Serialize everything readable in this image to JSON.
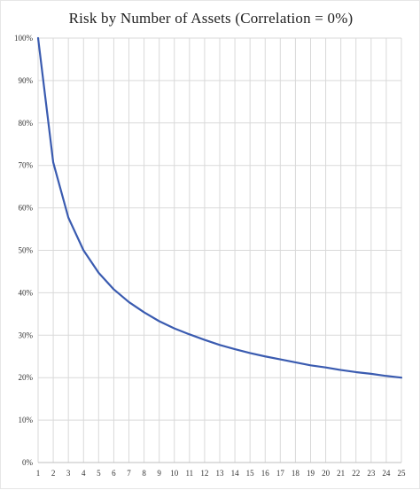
{
  "chart_data": {
    "type": "line",
    "title": "Risk by Number of Assets (Correlation = 0%)",
    "xlabel": "",
    "ylabel": "",
    "x": [
      1,
      2,
      3,
      4,
      5,
      6,
      7,
      8,
      9,
      10,
      11,
      12,
      13,
      14,
      15,
      16,
      17,
      18,
      19,
      20,
      21,
      22,
      23,
      24,
      25
    ],
    "y_tick_labels": [
      "0%",
      "10%",
      "20%",
      "30%",
      "40%",
      "50%",
      "60%",
      "70%",
      "80%",
      "90%",
      "100%"
    ],
    "series": [
      {
        "values": [
          100,
          70.7,
          57.7,
          50.0,
          44.7,
          40.8,
          37.8,
          35.4,
          33.3,
          31.6,
          30.2,
          28.9,
          27.7,
          26.7,
          25.8,
          25.0,
          24.3,
          23.6,
          22.9,
          22.4,
          21.8,
          21.3,
          20.9,
          20.4,
          20.0
        ]
      }
    ],
    "ylim": [
      0,
      100
    ],
    "xlim": [
      1,
      25
    ],
    "grid": true,
    "colors": {
      "line": "#3a5bb0",
      "grid": "#d9d9d9",
      "axis": "#bfbfbf"
    }
  }
}
